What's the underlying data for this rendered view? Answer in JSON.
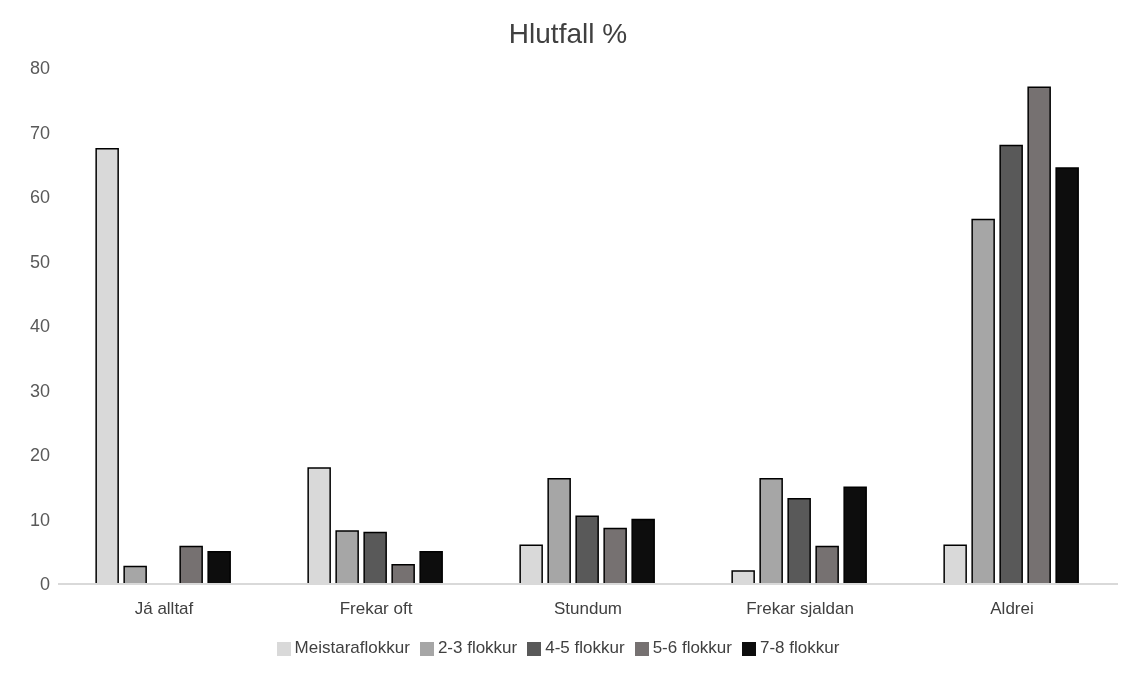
{
  "chart_data": {
    "type": "bar",
    "title": "Hlutfall %",
    "categories": [
      "Já alltaf",
      "Frekar oft",
      "Stundum",
      "Frekar sjaldan",
      "Aldrei"
    ],
    "series": [
      {
        "name": "Meistaraflokkur",
        "color": "#d9d9d9",
        "values": [
          67.5,
          18,
          6,
          2,
          6
        ]
      },
      {
        "name": "2-3 flokkur",
        "color": "#a6a6a6",
        "values": [
          2.7,
          8.2,
          16.3,
          16.3,
          56.5
        ]
      },
      {
        "name": "4-5 flokkur",
        "color": "#595959",
        "values": [
          0,
          8,
          10.5,
          13.2,
          68
        ]
      },
      {
        "name": "5-6 flokkur",
        "color": "#767171",
        "values": [
          5.8,
          3,
          8.6,
          5.8,
          77
        ]
      },
      {
        "name": "7-8 flokkur",
        "color": "#0d0d0d",
        "values": [
          5,
          5,
          10,
          15,
          64.5
        ]
      }
    ],
    "ylim": [
      0,
      80
    ],
    "yticks": [
      0,
      10,
      20,
      30,
      40,
      50,
      60,
      70,
      80
    ],
    "grid": false,
    "legend": "bottom"
  }
}
